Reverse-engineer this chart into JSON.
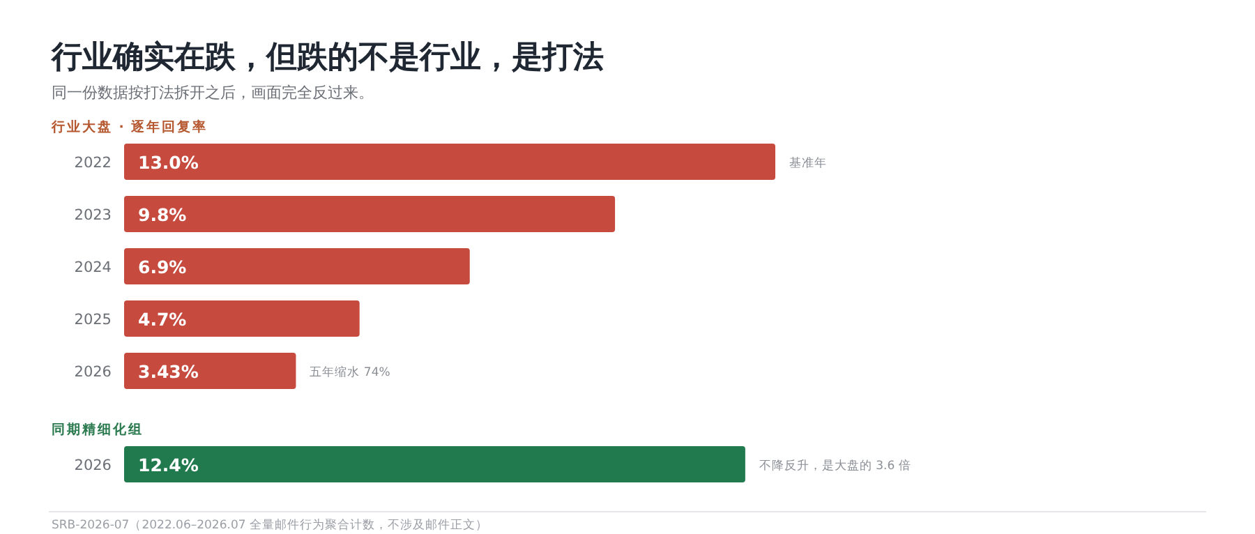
{
  "chart_data": [
    {
      "type": "other",
      "title": "行业确实在跌，但跌的不是行业，是打法",
      "subtitle": "同一份数据按打法拆开之后，画面完全反过来。"
    },
    {
      "type": "bar",
      "orientation": "horizontal",
      "title": "行业大盘 · 逐年回复率",
      "categories": [
        "2022",
        "2023",
        "2024",
        "2025",
        "2026"
      ],
      "values": [
        13.0,
        9.8,
        6.9,
        4.7,
        3.43
      ],
      "value_labels": [
        "13.0%",
        "9.8%",
        "6.9%",
        "4.7%",
        "3.43%"
      ],
      "color": "#c64a3e",
      "annotations": [
        {
          "text": "基准年",
          "x": 13.0,
          "y": "2022"
        },
        {
          "text": "五年缩水 74%",
          "x": 3.43,
          "y": "2026"
        }
      ]
    },
    {
      "type": "bar",
      "orientation": "horizontal",
      "title": "同期精细化组",
      "categories": [
        "2026"
      ],
      "values": [
        12.4
      ],
      "value_labels": [
        "12.4%"
      ],
      "color": "#217a4e",
      "annotations": [
        "不降反升，是大盘的 3.6 倍"
      ]
    },
    {
      "type": "other",
      "annotations": [
        "SRB-2026-07（2022.06–2026.07 全量邮件行为聚合计数，不涉及邮件正文）"
      ]
    }
  ]
}
